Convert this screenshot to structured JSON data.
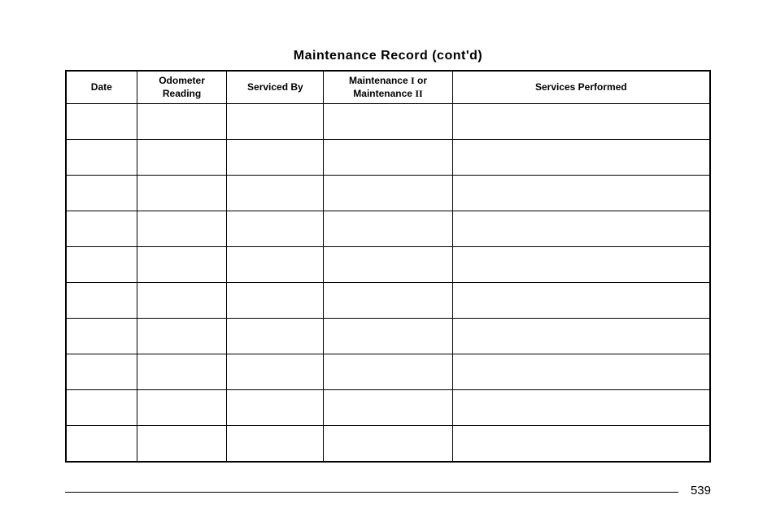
{
  "title": "Maintenance Record  (cont'd)",
  "columns": {
    "date": "Date",
    "odometer_line1": "Odometer",
    "odometer_line2": "Reading",
    "serviced": "Serviced By",
    "maintenance_prefix": "Maintenance ",
    "maintenance_roman1": "I",
    "maintenance_mid": " or",
    "maintenance_prefix2": "Maintenance ",
    "maintenance_roman2": "II",
    "services": "Services Performed"
  },
  "row_count": 10,
  "page_number": "539",
  "colors": {
    "background": "#ffffff",
    "text": "#000000",
    "border": "#000000"
  }
}
